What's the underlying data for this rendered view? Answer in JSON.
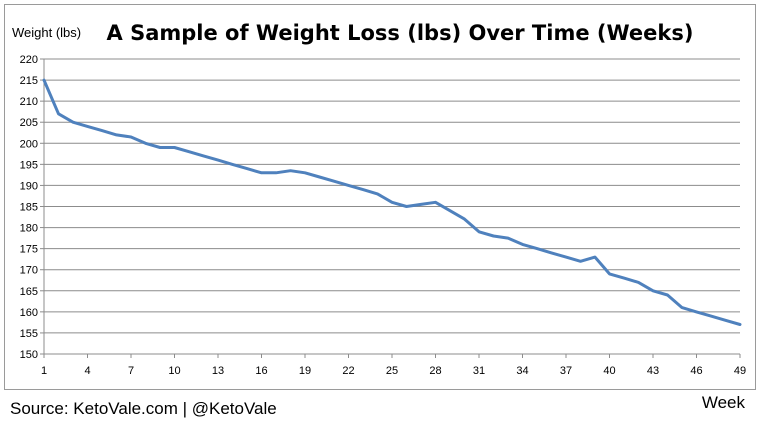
{
  "chart_data": {
    "type": "line",
    "title": "A Sample of Weight Loss (lbs) Over Time (Weeks)",
    "ylabel": "Weight (lbs)",
    "xlabel": "Week",
    "ylim": [
      150,
      220
    ],
    "yticks": [
      150,
      155,
      160,
      165,
      170,
      175,
      180,
      185,
      190,
      195,
      200,
      205,
      210,
      215,
      220
    ],
    "xlim": [
      1,
      49
    ],
    "xticks": [
      1,
      4,
      7,
      10,
      13,
      16,
      19,
      22,
      25,
      28,
      31,
      34,
      37,
      40,
      43,
      46,
      49
    ],
    "grid": true,
    "line_color": "#4f81bd",
    "series": [
      {
        "x": [
          1,
          2,
          3,
          4,
          5,
          6,
          7,
          8,
          9,
          10,
          11,
          12,
          13,
          14,
          15,
          16,
          17,
          18,
          19,
          20,
          21,
          22,
          23,
          24,
          25,
          26,
          27,
          28,
          29,
          30,
          31,
          32,
          33,
          34,
          35,
          36,
          37,
          38,
          39,
          40,
          41,
          42,
          43,
          44,
          45,
          46,
          47,
          48,
          49
        ],
        "values": [
          215,
          207,
          205,
          204,
          203,
          202,
          201.5,
          200,
          199,
          199,
          198,
          197,
          196,
          195,
          194,
          193,
          193,
          193.5,
          193,
          192,
          191,
          190,
          189,
          188,
          186,
          185,
          185.5,
          186,
          184,
          182,
          179,
          178,
          177.5,
          176,
          175,
          174,
          173,
          172,
          173,
          169,
          168,
          167,
          165,
          164,
          161,
          160,
          159,
          158,
          157
        ]
      }
    ]
  },
  "source": "Source: KetoVale.com | @KetoVale"
}
